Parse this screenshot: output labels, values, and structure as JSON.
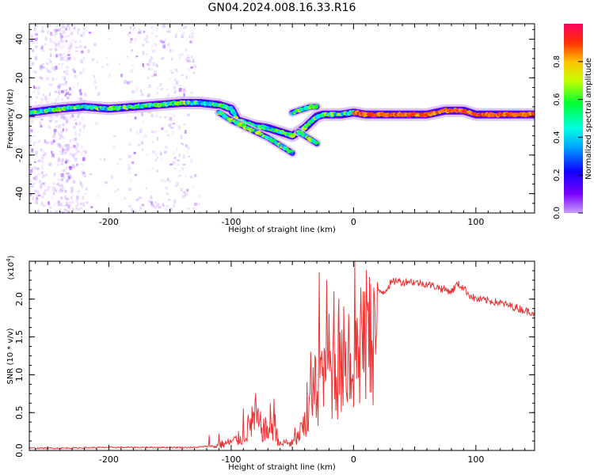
{
  "title": "GN04.2024.008.16.33.R16",
  "colorbar": {
    "label": "Normalized spectral amplitude",
    "ticks": [
      "0.0",
      "0.2",
      "0.4",
      "0.6",
      "0.8"
    ],
    "tick_values": [
      0.0,
      0.2,
      0.4,
      0.6,
      0.8
    ],
    "range": [
      0,
      1
    ]
  },
  "chart_data": [
    {
      "type": "heatmap",
      "xlabel": "Height of straight line (km)",
      "ylabel": "Frequency (Hz)",
      "xlim": [
        -265,
        148
      ],
      "ylim": [
        -50,
        48
      ],
      "xticks": [
        -200,
        -100,
        0,
        100
      ],
      "xtick_labels": [
        "-200",
        "-100",
        "0",
        "100"
      ],
      "yticks": [
        -40,
        -20,
        0,
        20,
        40
      ],
      "ytick_labels": [
        "-40",
        "-20",
        "0",
        "20",
        "40"
      ],
      "ridges": [
        {
          "x": [
            -265,
            -240,
            -220,
            -200,
            -180,
            -160,
            -140,
            -125,
            -110,
            -100,
            -95,
            -90,
            -80,
            -70,
            -60,
            -55,
            -50,
            -45,
            -40,
            -35,
            -30,
            -25,
            -20,
            -15,
            -10,
            0,
            10,
            20,
            40,
            60,
            75,
            90,
            100,
            120,
            148
          ],
          "y": [
            2,
            4,
            5,
            4,
            5,
            6,
            7,
            7,
            6,
            4,
            -2,
            -3,
            -5,
            -6,
            -8,
            -9,
            -10,
            -8,
            -6,
            -3,
            0,
            1,
            1,
            1,
            1,
            2,
            1,
            1,
            1,
            1,
            3,
            3,
            1,
            1,
            1
          ]
        },
        {
          "x": [
            -110,
            -100,
            -90,
            -80,
            -70,
            -60,
            -55,
            -50
          ],
          "y": [
            2,
            -2,
            -5,
            -8,
            -11,
            -15,
            -17,
            -19
          ]
        },
        {
          "x": [
            -50,
            -45,
            -40,
            -35,
            -30
          ],
          "y": [
            2,
            3,
            4,
            5,
            5
          ]
        },
        {
          "x": [
            -45,
            -40,
            -35,
            -30
          ],
          "y": [
            -8,
            -10,
            -12,
            -14
          ]
        }
      ]
    },
    {
      "type": "line",
      "xlabel": "Height of straight line (km)",
      "ylabel": "SNR (10 * v/v)",
      "scale_label": "(x10",
      "scale_exp": "4",
      "scale_close": ")",
      "xlim": [
        -265,
        148
      ],
      "ylim": [
        0,
        2.5
      ],
      "xticks": [
        -200,
        -100,
        0,
        100
      ],
      "xtick_labels": [
        "-200",
        "-100",
        "0",
        "100"
      ],
      "yticks": [
        0,
        0.5,
        1.0,
        1.5,
        2.0
      ],
      "ytick_labels": [
        "0.0",
        "0.5",
        "1.0",
        "1.5",
        "2.0"
      ],
      "color": "#ee3333",
      "envelope": {
        "x": [
          -265,
          -240,
          -200,
          -160,
          -130,
          -115,
          -110,
          -100,
          -90,
          -85,
          -80,
          -75,
          -70,
          -65,
          -60,
          -55,
          -50,
          -45,
          -42,
          -40,
          -37,
          -35,
          -33,
          -30,
          -27,
          -25,
          -22,
          -20,
          -17,
          -15,
          -12,
          -10,
          -7,
          -5,
          -2,
          0,
          3,
          5,
          8,
          10,
          15,
          20,
          25,
          30,
          35,
          40,
          45,
          50,
          60,
          70,
          80,
          85,
          90,
          95,
          100,
          110,
          120,
          130,
          140,
          148
        ],
        "y": [
          0.03,
          0.03,
          0.04,
          0.04,
          0.04,
          0.06,
          0.1,
          0.15,
          0.25,
          0.45,
          0.55,
          0.4,
          0.35,
          0.5,
          0.1,
          0.15,
          0.12,
          0.25,
          0.4,
          0.35,
          0.6,
          0.8,
          1.0,
          1.2,
          1.4,
          1.0,
          1.5,
          1.3,
          1.5,
          1.6,
          1.5,
          1.3,
          1.6,
          1.6,
          1.4,
          1.7,
          1.6,
          1.8,
          1.9,
          2.0,
          2.05,
          2.1,
          2.1,
          2.2,
          2.25,
          2.22,
          2.24,
          2.22,
          2.2,
          2.15,
          2.1,
          2.2,
          2.15,
          2.05,
          2.0,
          1.98,
          1.95,
          1.9,
          1.85,
          1.82
        ]
      },
      "spikes": {
        "x": [
          -118,
          -110,
          -90,
          -83,
          -80,
          -68,
          -65,
          -48,
          -40,
          -38,
          -35,
          -28,
          -25,
          -22,
          -20,
          -16,
          -12,
          -8,
          -4,
          1,
          3,
          6,
          8,
          11,
          14,
          17
        ],
        "y": [
          0.2,
          0.22,
          0.55,
          0.58,
          0.75,
          0.62,
          0.68,
          0.3,
          0.5,
          0.9,
          1.3,
          2.35,
          1.1,
          2.25,
          1.8,
          2.1,
          2.0,
          1.9,
          1.8,
          2.5,
          1.75,
          2.15,
          2.1,
          1.95,
          2.2,
          2.05
        ]
      }
    }
  ]
}
